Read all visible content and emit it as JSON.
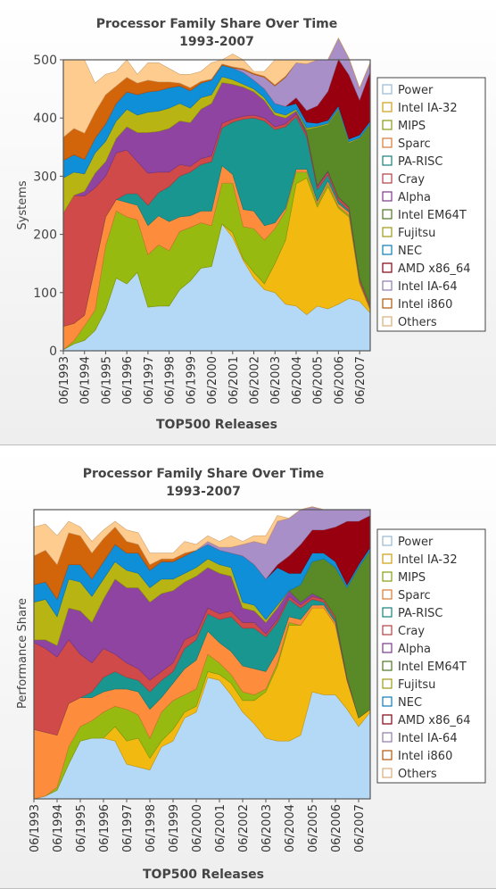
{
  "chart_data": [
    {
      "type": "area",
      "title": "Processor Family Share Over Time",
      "subtitle": "1993-2007",
      "xlabel": "TOP500 Releases",
      "ylabel": "Systems",
      "ylim": [
        0,
        500
      ],
      "yticks": [
        0,
        100,
        200,
        300,
        400,
        500
      ],
      "legend_position": "right",
      "stacked": true,
      "x": [
        "06/1993",
        "11/1993",
        "06/1994",
        "11/1994",
        "06/1995",
        "11/1995",
        "06/1996",
        "11/1996",
        "06/1997",
        "11/1997",
        "06/1998",
        "11/1998",
        "06/1999",
        "11/1999",
        "06/2000",
        "11/2000",
        "06/2001",
        "11/2001",
        "06/2002",
        "11/2002",
        "06/2003",
        "11/2003",
        "06/2004",
        "11/2004",
        "06/2005",
        "11/2005",
        "06/2006",
        "11/2006",
        "06/2007",
        "11/2007"
      ],
      "xticks": [
        "06/1993",
        "06/1994",
        "06/1995",
        "06/1996",
        "06/1997",
        "06/1998",
        "06/1999",
        "06/2000",
        "06/2001",
        "06/2002",
        "06/2003",
        "06/2004",
        "06/2005",
        "06/2006",
        "06/2007"
      ],
      "series": [
        {
          "name": "Power",
          "color": "#b3d9f7",
          "values": [
            2,
            12,
            18,
            35,
            70,
            125,
            115,
            135,
            75,
            77,
            77,
            105,
            120,
            142,
            145,
            218,
            195,
            155,
            125,
            105,
            100,
            80,
            77,
            62,
            77,
            72,
            80,
            90,
            85,
            65
          ]
        },
        {
          "name": "Intel IA-32",
          "color": "#f2ba10",
          "values": [
            0,
            0,
            0,
            0,
            0,
            0,
            0,
            0,
            0,
            0,
            0,
            0,
            0,
            0,
            0,
            0,
            8,
            3,
            10,
            10,
            50,
            110,
            210,
            235,
            170,
            210,
            165,
            140,
            30,
            5
          ]
        },
        {
          "name": "MIPS",
          "color": "#96ba10",
          "values": [
            0,
            5,
            25,
            35,
            110,
            115,
            115,
            90,
            90,
            105,
            95,
            100,
            92,
            78,
            70,
            70,
            85,
            55,
            75,
            75,
            60,
            50,
            20,
            10,
            5,
            5,
            3,
            3,
            2,
            1
          ]
        },
        {
          "name": "Sparc",
          "color": "#fd8d3c",
          "values": [
            40,
            30,
            18,
            75,
            50,
            20,
            25,
            25,
            50,
            50,
            50,
            25,
            20,
            20,
            25,
            30,
            15,
            30,
            30,
            25,
            10,
            5,
            5,
            5,
            5,
            5,
            5,
            5,
            2,
            2
          ]
        },
        {
          "name": "PA-RISC",
          "color": "#1a9690",
          "values": [
            0,
            0,
            0,
            0,
            0,
            0,
            15,
            20,
            35,
            40,
            60,
            70,
            75,
            80,
            85,
            65,
            90,
            155,
            160,
            180,
            160,
            140,
            90,
            55,
            20,
            10,
            5,
            3,
            1,
            1
          ]
        },
        {
          "name": "Cray",
          "color": "#d04a4a",
          "values": [
            195,
            220,
            205,
            135,
            70,
            80,
            75,
            55,
            55,
            35,
            25,
            20,
            10,
            10,
            10,
            8,
            5,
            5,
            5,
            5,
            5,
            5,
            5,
            5,
            5,
            5,
            5,
            5,
            5,
            5
          ]
        },
        {
          "name": "Alpha",
          "color": "#8e44a0",
          "values": [
            0,
            0,
            8,
            25,
            25,
            25,
            40,
            50,
            70,
            70,
            75,
            75,
            75,
            85,
            90,
            70,
            60,
            50,
            40,
            30,
            20,
            10,
            5,
            3,
            2,
            2,
            1,
            1,
            0,
            0
          ]
        },
        {
          "name": "Intel EM64T",
          "color": "#5a8a28",
          "values": [
            0,
            0,
            0,
            0,
            0,
            0,
            0,
            0,
            0,
            0,
            0,
            0,
            0,
            0,
            0,
            0,
            0,
            0,
            0,
            0,
            0,
            0,
            0,
            5,
            100,
            80,
            150,
            110,
            240,
            310
          ]
        },
        {
          "name": "Fujitsu",
          "color": "#b8b414",
          "values": [
            60,
            40,
            30,
            35,
            35,
            30,
            30,
            30,
            35,
            35,
            35,
            30,
            25,
            20,
            15,
            10,
            8,
            5,
            5,
            5,
            5,
            5,
            3,
            3,
            2,
            2,
            2,
            2,
            1,
            1
          ]
        },
        {
          "name": "NEC",
          "color": "#0f8fd8",
          "values": [
            30,
            30,
            25,
            25,
            30,
            30,
            30,
            35,
            35,
            35,
            35,
            30,
            30,
            25,
            25,
            20,
            20,
            20,
            15,
            15,
            15,
            15,
            10,
            10,
            5,
            5,
            5,
            5,
            5,
            5
          ]
        },
        {
          "name": "AMD x86_64",
          "color": "#980010",
          "values": [
            0,
            0,
            0,
            0,
            0,
            0,
            0,
            0,
            0,
            0,
            0,
            0,
            0,
            0,
            0,
            0,
            0,
            0,
            0,
            0,
            0,
            0,
            10,
            20,
            30,
            50,
            80,
            110,
            60,
            85
          ]
        },
        {
          "name": "Intel IA-64",
          "color": "#a98fc8",
          "values": [
            0,
            0,
            0,
            0,
            0,
            0,
            0,
            0,
            0,
            0,
            0,
            0,
            0,
            0,
            0,
            0,
            0,
            5,
            10,
            20,
            30,
            50,
            60,
            80,
            79,
            54,
            36,
            28,
            20,
            15
          ]
        },
        {
          "name": "Intel i860",
          "color": "#d2640a",
          "values": [
            40,
            45,
            45,
            45,
            50,
            30,
            25,
            20,
            20,
            15,
            10,
            5,
            5,
            3,
            2,
            2,
            2,
            2,
            2,
            2,
            2,
            2,
            0,
            0,
            0,
            0,
            0,
            0,
            0,
            0
          ]
        },
        {
          "name": "Others",
          "color": "#ffcc90",
          "values": [
            133,
            118,
            126,
            50,
            35,
            25,
            30,
            15,
            30,
            33,
            23,
            15,
            23,
            17,
            28,
            7,
            22,
            15,
            3,
            8,
            43,
            28,
            5,
            7,
            0,
            0,
            0,
            0,
            0,
            0
          ]
        }
      ]
    },
    {
      "type": "area",
      "title": "Processor Family Share Over Time",
      "subtitle": "1993-2007",
      "xlabel": "TOP500 Releases",
      "ylabel": "Performance Share",
      "ylim": [
        0,
        1
      ],
      "legend_position": "right",
      "stacked": true,
      "x": [
        "06/1993",
        "11/1993",
        "06/1994",
        "11/1994",
        "06/1995",
        "11/1995",
        "06/1996",
        "11/1996",
        "06/1997",
        "11/1997",
        "06/1998",
        "11/1998",
        "06/1999",
        "11/1999",
        "06/2000",
        "11/2000",
        "06/2001",
        "11/2001",
        "06/2002",
        "11/2002",
        "06/2003",
        "11/2003",
        "06/2004",
        "11/2004",
        "06/2005",
        "11/2005",
        "06/2006",
        "11/2006",
        "06/2007",
        "11/2007"
      ],
      "xticks": [
        "06/1993",
        "06/1994",
        "06/1995",
        "06/1996",
        "06/1997",
        "06/1998",
        "06/1999",
        "06/2000",
        "06/2001",
        "06/2002",
        "06/2003",
        "06/2004",
        "06/2005",
        "06/2006",
        "06/2007"
      ],
      "series": [
        {
          "name": "Power",
          "color": "#b3d9f7",
          "values": [
            0.0,
            0.01,
            0.03,
            0.12,
            0.2,
            0.21,
            0.21,
            0.2,
            0.12,
            0.11,
            0.1,
            0.18,
            0.2,
            0.28,
            0.3,
            0.42,
            0.41,
            0.36,
            0.3,
            0.26,
            0.21,
            0.2,
            0.2,
            0.22,
            0.37,
            0.36,
            0.36,
            0.31,
            0.25,
            0.3
          ]
        },
        {
          "name": "Intel IA-32",
          "color": "#f2ba10",
          "values": [
            0,
            0,
            0,
            0,
            0,
            0,
            0,
            0.05,
            0.08,
            0.1,
            0.04,
            0.02,
            0.04,
            0.02,
            0.02,
            0.02,
            0.02,
            0.04,
            0.04,
            0.08,
            0.16,
            0.26,
            0.4,
            0.38,
            0.29,
            0.3,
            0.24,
            0.1,
            0.03,
            0.01
          ]
        },
        {
          "name": "MIPS",
          "color": "#96ba10",
          "values": [
            0,
            0,
            0.01,
            0.06,
            0.05,
            0.06,
            0.09,
            0.07,
            0.11,
            0.08,
            0.07,
            0.1,
            0.1,
            0.06,
            0.06,
            0.06,
            0.04,
            0.03,
            0.03,
            0.02,
            0.01,
            0.01,
            0.01,
            0,
            0,
            0,
            0,
            0,
            0,
            0
          ]
        },
        {
          "name": "Sparc",
          "color": "#fd8d3c",
          "values": [
            0.24,
            0.22,
            0.18,
            0.15,
            0.1,
            0.08,
            0.07,
            0.06,
            0.07,
            0.08,
            0.1,
            0.05,
            0.06,
            0.09,
            0.1,
            0.08,
            0.07,
            0.08,
            0.09,
            0.09,
            0.06,
            0.04,
            0.02,
            0.02,
            0.01,
            0.01,
            0.01,
            0,
            0,
            0
          ]
        },
        {
          "name": "PA-RISC",
          "color": "#1a9690",
          "values": [
            0,
            0,
            0,
            0,
            0,
            0.02,
            0.05,
            0.06,
            0.04,
            0.04,
            0.06,
            0.06,
            0.04,
            0.07,
            0.07,
            0.06,
            0.08,
            0.12,
            0.13,
            0.14,
            0.12,
            0.1,
            0.06,
            0.04,
            0.02,
            0.01,
            0.01,
            0,
            0,
            0
          ]
        },
        {
          "name": "Cray",
          "color": "#d04a4a",
          "values": [
            0.3,
            0.29,
            0.27,
            0.22,
            0.15,
            0.1,
            0.1,
            0.06,
            0.05,
            0.04,
            0.04,
            0.03,
            0.03,
            0.03,
            0.02,
            0.02,
            0.02,
            0.02,
            0.02,
            0.02,
            0.01,
            0.01,
            0.01,
            0.01,
            0.01,
            0.01,
            0.01,
            0.01,
            0,
            0
          ]
        },
        {
          "name": "Alpha",
          "color": "#8e44a0",
          "values": [
            0.01,
            0.03,
            0.04,
            0.11,
            0.15,
            0.14,
            0.17,
            0.26,
            0.26,
            0.28,
            0.27,
            0.27,
            0.25,
            0.2,
            0.2,
            0.14,
            0.14,
            0.12,
            0.05,
            0.04,
            0.04,
            0.04,
            0.02,
            0.01,
            0.01,
            0,
            0,
            0,
            0,
            0
          ]
        },
        {
          "name": "Intel EM64T",
          "color": "#5a8a28",
          "values": [
            0,
            0,
            0,
            0,
            0,
            0,
            0,
            0,
            0,
            0,
            0,
            0,
            0,
            0,
            0,
            0,
            0,
            0,
            0,
            0,
            0,
            0,
            0,
            0.06,
            0.11,
            0.14,
            0.17,
            0.31,
            0.52,
            0.55
          ]
        },
        {
          "name": "Fujitsu",
          "color": "#b8b414",
          "values": [
            0.13,
            0.14,
            0.1,
            0.1,
            0.1,
            0.09,
            0.07,
            0.06,
            0.06,
            0.05,
            0.05,
            0.05,
            0.04,
            0.03,
            0.03,
            0.03,
            0.03,
            0.03,
            0.02,
            0.02,
            0.01,
            0.01,
            0,
            0,
            0,
            0,
            0,
            0,
            0,
            0
          ]
        },
        {
          "name": "NEC",
          "color": "#0f8fd8",
          "values": [
            0.06,
            0.06,
            0.06,
            0.05,
            0.06,
            0.06,
            0.06,
            0.06,
            0.06,
            0.07,
            0.06,
            0.06,
            0.06,
            0.06,
            0.06,
            0.05,
            0.05,
            0.05,
            0.16,
            0.14,
            0.14,
            0.13,
            0.06,
            0.04,
            0.03,
            0.02,
            0.02,
            0.01,
            0.01,
            0.01
          ]
        },
        {
          "name": "AMD x86_64",
          "color": "#980010",
          "values": [
            0,
            0,
            0,
            0,
            0,
            0,
            0,
            0,
            0,
            0,
            0,
            0,
            0,
            0,
            0,
            0,
            0,
            0,
            0,
            0,
            0,
            0.01,
            0.06,
            0.1,
            0.08,
            0.08,
            0.12,
            0.22,
            0.15,
            0.11
          ]
        },
        {
          "name": "Intel IA-64",
          "color": "#a98fc8",
          "values": [
            0,
            0,
            0,
            0,
            0,
            0,
            0,
            0,
            0,
            0,
            0,
            0,
            0,
            0,
            0,
            0.01,
            0.01,
            0.02,
            0.04,
            0.08,
            0.12,
            0.15,
            0.13,
            0.12,
            0.08,
            0.07,
            0.06,
            0.04,
            0.04,
            0.02
          ]
        },
        {
          "name": "Intel i860",
          "color": "#d2640a",
          "values": [
            0.1,
            0.11,
            0.12,
            0.11,
            0.1,
            0.09,
            0.08,
            0.06,
            0.04,
            0.03,
            0.02,
            0.01,
            0.01,
            0.01,
            0,
            0,
            0,
            0,
            0,
            0,
            0,
            0,
            0,
            0,
            0,
            0,
            0,
            0,
            0,
            0
          ]
        },
        {
          "name": "Others",
          "color": "#ffcc90",
          "values": [
            0.1,
            0.09,
            0.1,
            0.04,
            0.03,
            0.04,
            0.03,
            0.02,
            0.04,
            0.04,
            0.04,
            0.02,
            0.02,
            0.04,
            0.02,
            0.02,
            0.02,
            0.04,
            0.01,
            0.02,
            0.03,
            0.02,
            0,
            0,
            0,
            0,
            0,
            0,
            0,
            0
          ]
        }
      ]
    }
  ]
}
